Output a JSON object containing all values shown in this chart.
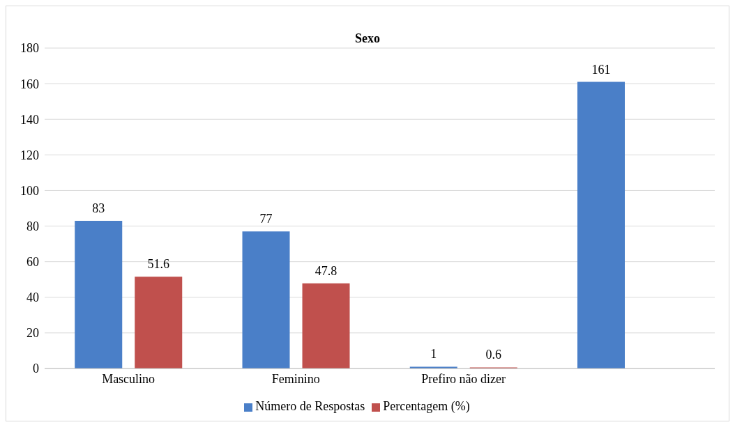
{
  "chart_data": {
    "type": "bar",
    "title": "Sexo",
    "categories": [
      "Masculino",
      "Feminino",
      "Prefiro não dizer",
      null
    ],
    "series": [
      {
        "name": "Número de Respostas",
        "color": "#4a7fc8",
        "values": [
          83,
          77,
          1,
          161
        ]
      },
      {
        "name": "Percentagem (%)",
        "color": "#c0504d",
        "values": [
          51.6,
          47.8,
          0.6,
          null
        ]
      }
    ],
    "ylim": [
      0,
      180
    ],
    "yticks": [
      0,
      20,
      40,
      60,
      80,
      100,
      120,
      140,
      160,
      180
    ],
    "grid": "y",
    "legend": "bottom",
    "data_labels": true
  }
}
